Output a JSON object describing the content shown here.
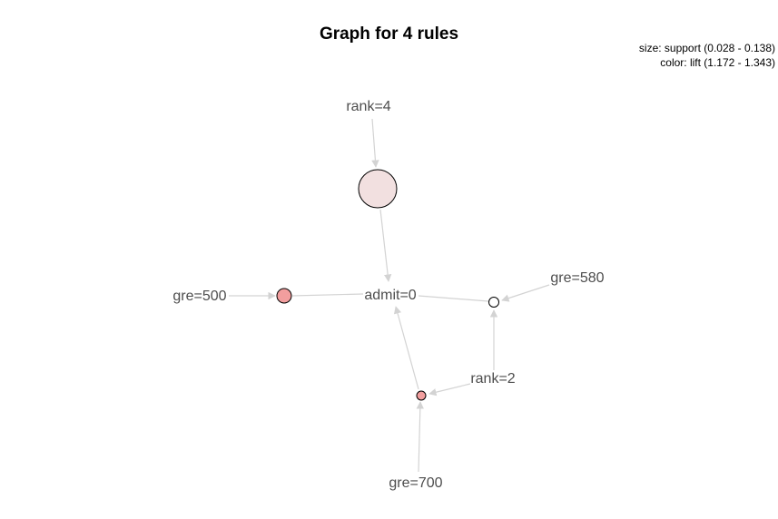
{
  "title": "Graph for 4 rules",
  "legend": {
    "size": "size: support (0.028 - 0.138)",
    "color": "color: lift (1.172 - 1.343)"
  },
  "items": [
    {
      "id": "rank4",
      "label": "rank=4"
    },
    {
      "id": "gre500",
      "label": "gre=500"
    },
    {
      "id": "admit0",
      "label": "admit=0"
    },
    {
      "id": "gre580",
      "label": "gre=580"
    },
    {
      "id": "rank2",
      "label": "rank=2"
    },
    {
      "id": "gre700",
      "label": "gre=700"
    }
  ],
  "rules": [
    {
      "id": "rule1",
      "fill": "#f2e0e0"
    },
    {
      "id": "rule2",
      "fill": "#f29e9e"
    },
    {
      "id": "rule3",
      "fill": "#ffffff"
    },
    {
      "id": "rule4",
      "fill": "#f29e9e"
    }
  ]
}
